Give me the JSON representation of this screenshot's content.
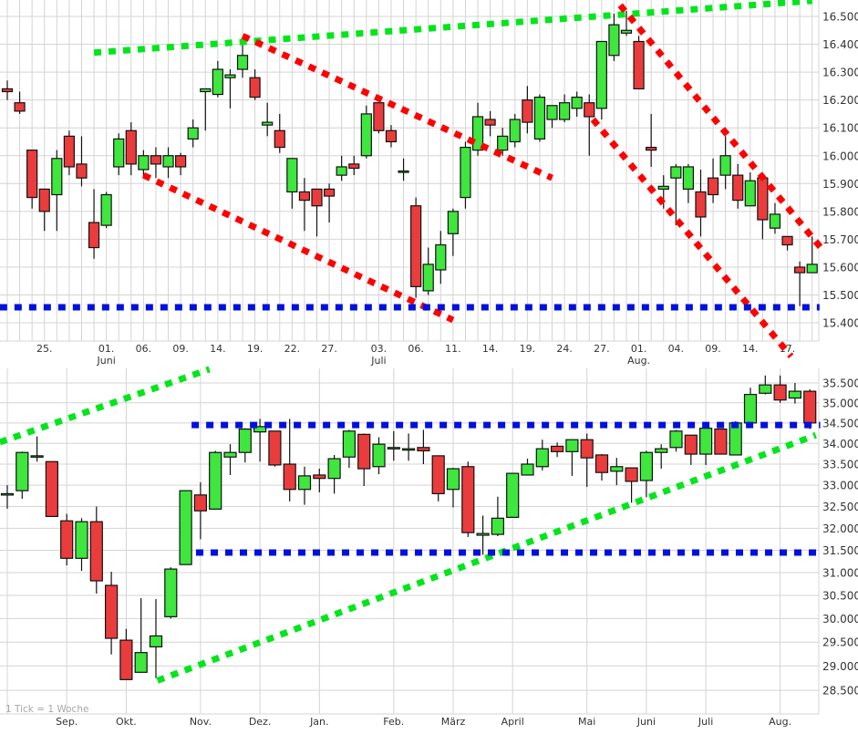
{
  "colors": {
    "up": "#3ee63e",
    "down": "#ea3c3c",
    "support": "#0010dd",
    "trend_up": "#00e61a",
    "trend_down": "#ff0000",
    "grid": "#d4d4d4"
  },
  "chart_data": [
    {
      "type": "candlestick",
      "title": "",
      "scale": "linear",
      "ylim": [
        15.35,
        16.56
      ],
      "grid": true,
      "y_ticks": [
        {
          "v": 16.5,
          "label": "16.500"
        },
        {
          "v": 16.4,
          "label": "16.400"
        },
        {
          "v": 16.3,
          "label": "16.300"
        },
        {
          "v": 16.2,
          "label": "16.200"
        },
        {
          "v": 16.1,
          "label": "16.100"
        },
        {
          "v": 16.0,
          "label": "16.000"
        },
        {
          "v": 15.9,
          "label": "15.900"
        },
        {
          "v": 15.8,
          "label": "15.800"
        },
        {
          "v": 15.7,
          "label": "15.700"
        },
        {
          "v": 15.6,
          "label": "15.600"
        },
        {
          "v": 15.5,
          "label": "15.500"
        },
        {
          "v": 15.4,
          "label": "15.400"
        }
      ],
      "x_ticks": [
        {
          "i": 3,
          "label": "25.",
          "sub": ""
        },
        {
          "i": 8,
          "label": "01.",
          "sub": "Juni"
        },
        {
          "i": 11,
          "label": "06.",
          "sub": ""
        },
        {
          "i": 14,
          "label": "09.",
          "sub": ""
        },
        {
          "i": 17,
          "label": "14.",
          "sub": ""
        },
        {
          "i": 20,
          "label": "19.",
          "sub": ""
        },
        {
          "i": 23,
          "label": "22.",
          "sub": ""
        },
        {
          "i": 26,
          "label": "27.",
          "sub": ""
        },
        {
          "i": 30,
          "label": "03.",
          "sub": "Juli"
        },
        {
          "i": 33,
          "label": "06.",
          "sub": ""
        },
        {
          "i": 36,
          "label": "11.",
          "sub": ""
        },
        {
          "i": 39,
          "label": "14.",
          "sub": ""
        },
        {
          "i": 42,
          "label": "19.",
          "sub": ""
        },
        {
          "i": 45,
          "label": "24.",
          "sub": ""
        },
        {
          "i": 48,
          "label": "27.",
          "sub": ""
        },
        {
          "i": 51,
          "label": "01.",
          "sub": "Aug."
        },
        {
          "i": 54,
          "label": "04.",
          "sub": ""
        },
        {
          "i": 57,
          "label": "09.",
          "sub": ""
        },
        {
          "i": 60,
          "label": "14.",
          "sub": ""
        },
        {
          "i": 63,
          "label": "17.",
          "sub": ""
        }
      ],
      "ohlc": [
        [
          16.24,
          16.27,
          16.2,
          16.23
        ],
        [
          16.19,
          16.23,
          16.15,
          16.16
        ],
        [
          16.02,
          16.02,
          15.81,
          15.85
        ],
        [
          15.88,
          15.88,
          15.73,
          15.8
        ],
        [
          15.86,
          16.02,
          15.73,
          15.99
        ],
        [
          16.07,
          16.09,
          15.93,
          15.96
        ],
        [
          15.97,
          16.07,
          15.89,
          15.92
        ],
        [
          15.76,
          15.88,
          15.63,
          15.67
        ],
        [
          15.75,
          15.87,
          15.74,
          15.86
        ],
        [
          15.96,
          16.08,
          15.93,
          16.06
        ],
        [
          16.09,
          16.12,
          15.93,
          15.97
        ],
        [
          15.95,
          16.02,
          15.92,
          16.0
        ],
        [
          16.0,
          16.03,
          15.92,
          15.97
        ],
        [
          15.96,
          16.03,
          15.92,
          16.0
        ],
        [
          16.0,
          16.01,
          15.93,
          15.96
        ],
        [
          16.06,
          16.13,
          16.03,
          16.1
        ],
        [
          16.23,
          16.24,
          16.09,
          16.24
        ],
        [
          16.22,
          16.34,
          16.21,
          16.31
        ],
        [
          16.28,
          16.31,
          16.17,
          16.29
        ],
        [
          16.31,
          16.41,
          16.28,
          16.36
        ],
        [
          16.28,
          16.31,
          16.2,
          16.21
        ],
        [
          16.11,
          16.19,
          16.07,
          16.12
        ],
        [
          16.09,
          16.15,
          16.01,
          16.03
        ],
        [
          15.87,
          15.99,
          15.81,
          15.99
        ],
        [
          15.87,
          15.92,
          15.73,
          15.84
        ],
        [
          15.88,
          15.88,
          15.71,
          15.82
        ],
        [
          15.88,
          15.9,
          15.76,
          15.855
        ],
        [
          15.93,
          16.0,
          15.91,
          15.96
        ],
        [
          15.97,
          16.0,
          15.93,
          15.955
        ],
        [
          16.0,
          16.18,
          15.99,
          16.15
        ],
        [
          16.19,
          16.19,
          16.08,
          16.09
        ],
        [
          16.09,
          16.11,
          16.03,
          16.05
        ],
        [
          15.94,
          15.99,
          15.91,
          15.945
        ],
        [
          15.82,
          15.85,
          15.49,
          15.53
        ],
        [
          15.515,
          15.67,
          15.5,
          15.61
        ],
        [
          15.59,
          15.73,
          15.54,
          15.68
        ],
        [
          15.72,
          15.81,
          15.64,
          15.8
        ],
        [
          15.85,
          16.05,
          15.81,
          16.03
        ],
        [
          16.02,
          16.19,
          16.0,
          16.14
        ],
        [
          16.13,
          16.16,
          16.07,
          16.11
        ],
        [
          16.02,
          16.1,
          16.0,
          16.07
        ],
        [
          16.05,
          16.15,
          16.03,
          16.13
        ],
        [
          16.2,
          16.25,
          16.08,
          16.12
        ],
        [
          16.06,
          16.22,
          16.05,
          16.21
        ],
        [
          16.13,
          16.18,
          16.1,
          16.18
        ],
        [
          16.13,
          16.22,
          16.12,
          16.19
        ],
        [
          16.17,
          16.23,
          16.14,
          16.21
        ],
        [
          16.19,
          16.22,
          16.0,
          16.14
        ],
        [
          16.17,
          16.41,
          16.13,
          16.41
        ],
        [
          16.36,
          16.51,
          16.34,
          16.47
        ],
        [
          16.44,
          16.52,
          16.43,
          16.45
        ],
        [
          16.41,
          16.43,
          16.24,
          16.24
        ],
        [
          16.03,
          16.15,
          15.96,
          16.02
        ],
        [
          15.88,
          15.93,
          15.81,
          15.89
        ],
        [
          15.92,
          15.97,
          15.75,
          15.96
        ],
        [
          15.88,
          15.97,
          15.83,
          15.96
        ],
        [
          15.87,
          15.95,
          15.71,
          15.78
        ],
        [
          15.92,
          15.99,
          15.83,
          15.86
        ],
        [
          15.93,
          16.07,
          15.88,
          16.0
        ],
        [
          15.93,
          15.97,
          15.81,
          15.84
        ],
        [
          15.82,
          15.94,
          15.82,
          15.91
        ],
        [
          15.92,
          15.92,
          15.7,
          15.77
        ],
        [
          15.74,
          15.83,
          15.72,
          15.79
        ],
        [
          15.71,
          15.71,
          15.66,
          15.68
        ],
        [
          15.6,
          15.62,
          15.46,
          15.58
        ],
        [
          15.58,
          15.71,
          15.58,
          15.61
        ]
      ],
      "lines": [
        {
          "kind": "trend_up",
          "from": [
            7
          ],
          " to": null,
          "p1": 16.37,
          "to": [
            65,
            16.556
          ]
        },
        {
          "kind": "trend_down",
          "from": [
            19,
            16.43
          ],
          "to": [
            44,
            15.92
          ]
        },
        {
          "kind": "trend_down",
          "from": [
            11,
            15.93
          ],
          "to": [
            36,
            15.41
          ]
        },
        {
          "kind": "trend_down",
          "from": [
            49.5,
            16.54
          ],
          "to": [
            65.7,
            15.67
          ]
        },
        {
          "kind": "trend_down",
          "from": [
            47.3,
            16.13
          ],
          "to": [
            63.3,
            15.28
          ]
        },
        {
          "kind": "support",
          "from": [
            -0.6,
            15.456
          ],
          "to": [
            65.6,
            15.456
          ]
        }
      ]
    },
    {
      "type": "candlestick",
      "title": "",
      "scale": "log",
      "ylim": [
        28.2,
        35.9
      ],
      "grid": true,
      "note": "1 Tick = 1 Woche",
      "y_ticks": [
        {
          "v": 35.5,
          "label": "35.500"
        },
        {
          "v": 35.0,
          "label": "35.000"
        },
        {
          "v": 34.5,
          "label": "34.500"
        },
        {
          "v": 34.0,
          "label": "34.000"
        },
        {
          "v": 33.5,
          "label": "33.500"
        },
        {
          "v": 33.0,
          "label": "33.000"
        },
        {
          "v": 32.5,
          "label": "32.500"
        },
        {
          "v": 32.0,
          "label": "32.000"
        },
        {
          "v": 31.5,
          "label": "31.500"
        },
        {
          "v": 31.0,
          "label": "31.000"
        },
        {
          "v": 30.5,
          "label": "30.500"
        },
        {
          "v": 30.0,
          "label": "30.000"
        },
        {
          "v": 29.5,
          "label": "29.500"
        },
        {
          "v": 29.0,
          "label": "29.000"
        },
        {
          "v": 28.5,
          "label": "28.500"
        }
      ],
      "x_ticks": [
        {
          "i": 4,
          "label": "Sep."
        },
        {
          "i": 8,
          "label": "Okt."
        },
        {
          "i": 13,
          "label": "Nov."
        },
        {
          "i": 17,
          "label": "Dez."
        },
        {
          "i": 21,
          "label": "Jan."
        },
        {
          "i": 26,
          "label": "Feb."
        },
        {
          "i": 30,
          "label": "März"
        },
        {
          "i": 34,
          "label": "April"
        },
        {
          "i": 39,
          "label": "Mai"
        },
        {
          "i": 43,
          "label": "Juni"
        },
        {
          "i": 47,
          "label": "Juli"
        },
        {
          "i": 52,
          "label": "Aug."
        }
      ],
      "ohlc": [
        [
          32.77,
          33.0,
          32.45,
          32.8
        ],
        [
          32.87,
          33.8,
          32.68,
          33.78
        ],
        [
          33.7,
          34.17,
          33.56,
          33.7
        ],
        [
          33.56,
          33.56,
          32.27,
          32.27
        ],
        [
          32.17,
          32.33,
          31.16,
          31.32
        ],
        [
          31.32,
          32.23,
          31.04,
          32.15
        ],
        [
          32.15,
          32.5,
          30.54,
          30.82
        ],
        [
          30.72,
          31.02,
          29.24,
          29.58
        ],
        [
          29.54,
          29.78,
          28.72,
          28.72
        ],
        [
          28.87,
          30.44,
          28.87,
          29.28
        ],
        [
          29.4,
          30.42,
          28.75,
          29.63
        ],
        [
          30.04,
          31.12,
          30.0,
          31.08
        ],
        [
          31.18,
          32.87,
          31.18,
          32.87
        ],
        [
          32.77,
          33.07,
          31.75,
          32.4
        ],
        [
          32.44,
          33.82,
          32.44,
          33.78
        ],
        [
          33.67,
          33.98,
          33.24,
          33.78
        ],
        [
          33.78,
          34.37,
          33.54,
          34.35
        ],
        [
          34.28,
          34.6,
          33.56,
          34.41
        ],
        [
          34.3,
          34.3,
          33.44,
          33.48
        ],
        [
          33.5,
          34.6,
          32.62,
          32.9
        ],
        [
          32.9,
          33.44,
          32.54,
          33.22
        ],
        [
          33.24,
          33.39,
          32.83,
          33.16
        ],
        [
          33.16,
          33.72,
          32.8,
          33.63
        ],
        [
          33.67,
          34.33,
          33.41,
          34.3
        ],
        [
          34.22,
          34.24,
          32.98,
          33.39
        ],
        [
          33.44,
          34.15,
          33.26,
          33.98
        ],
        [
          33.9,
          34.3,
          33.58,
          33.9
        ],
        [
          33.87,
          34.24,
          33.58,
          33.87
        ],
        [
          33.9,
          34.33,
          33.5,
          33.82
        ],
        [
          33.7,
          33.7,
          32.62,
          32.8
        ],
        [
          32.9,
          33.41,
          32.48,
          33.39
        ],
        [
          33.44,
          33.56,
          31.8,
          31.9
        ],
        [
          31.84,
          32.29,
          31.4,
          31.88
        ],
        [
          31.86,
          32.73,
          31.82,
          32.23
        ],
        [
          32.25,
          33.28,
          32.25,
          33.28
        ],
        [
          33.24,
          33.63,
          33.24,
          33.5
        ],
        [
          33.44,
          34.09,
          33.35,
          33.87
        ],
        [
          33.93,
          34.02,
          33.67,
          33.8
        ],
        [
          33.8,
          34.09,
          33.22,
          34.09
        ],
        [
          34.09,
          34.24,
          32.96,
          33.65
        ],
        [
          33.72,
          33.74,
          33.11,
          33.3
        ],
        [
          33.33,
          33.65,
          33.0,
          33.44
        ],
        [
          33.41,
          33.41,
          32.59,
          33.09
        ],
        [
          33.11,
          33.82,
          32.72,
          33.78
        ],
        [
          33.78,
          33.98,
          33.39,
          33.87
        ],
        [
          33.9,
          34.33,
          33.8,
          34.3
        ],
        [
          34.2,
          34.2,
          33.48,
          33.74
        ],
        [
          33.74,
          34.41,
          33.48,
          34.37
        ],
        [
          34.35,
          34.35,
          33.74,
          33.74
        ],
        [
          33.72,
          34.54,
          33.72,
          34.5
        ],
        [
          34.5,
          35.38,
          34.5,
          35.21
        ],
        [
          35.24,
          35.69,
          35.21,
          35.45
        ],
        [
          35.45,
          35.69,
          35.0,
          35.07
        ],
        [
          35.12,
          35.5,
          34.98,
          35.29
        ],
        [
          35.29,
          35.34,
          34.35,
          34.5
        ]
      ],
      "lines": [
        {
          "kind": "trend_up",
          "from": [
            -0.5,
            34.03
          ],
          "to": [
            13.6,
            35.85
          ]
        },
        {
          "kind": "trend_up",
          "from": [
            10.1,
            28.7
          ],
          "to": [
            54.4,
            34.2
          ]
        },
        {
          "kind": "support",
          "from": [
            12.4,
            34.45
          ],
          "to": [
            54.7,
            34.45
          ]
        },
        {
          "kind": "support",
          "from": [
            12.7,
            31.45
          ],
          "to": [
            54.7,
            31.45
          ]
        }
      ]
    }
  ]
}
